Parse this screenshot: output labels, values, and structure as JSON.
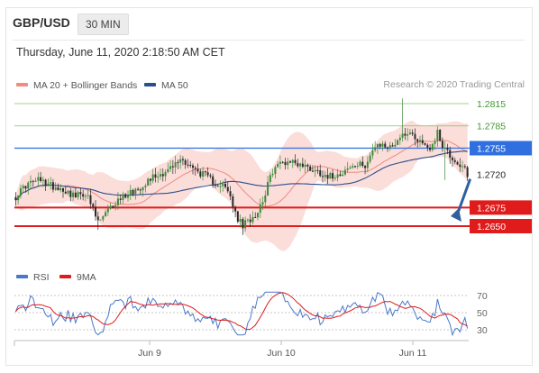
{
  "header": {
    "symbol": "GBP/USD",
    "timeframe": "30 MIN",
    "datetime": "Thursday, June 11, 2020 2:18:50 AM CET"
  },
  "legend_main": [
    {
      "label": "MA 20 + Bollinger Bands",
      "color": "#f28b82"
    },
    {
      "label": "MA 50",
      "color": "#2c4f8c"
    }
  ],
  "legend_rsi": [
    {
      "label": "RSI",
      "color": "#4a78c8"
    },
    {
      "label": "9MA",
      "color": "#e01b1b"
    }
  ],
  "credit": "Research © 2020 Trading Central",
  "colors": {
    "resistance": "#7cc464",
    "pivot": "#3f7be0",
    "support": "#e01b1b",
    "arrow": "#2f5f9e",
    "band": "#fad7d3"
  },
  "chart_data": {
    "type": "line",
    "series_style": "candlestick",
    "ylim": [
      1.2615,
      1.2835
    ],
    "levels": [
      {
        "value": 1.2815,
        "label": "1.2815",
        "kind": "resistance"
      },
      {
        "value": 1.2785,
        "label": "1.2785",
        "kind": "resistance"
      },
      {
        "value": 1.2755,
        "label": "1.2755",
        "kind": "pivot"
      },
      {
        "value": 1.272,
        "label": "1.2720",
        "kind": "current"
      },
      {
        "value": 1.2675,
        "label": "1.2675",
        "kind": "support"
      },
      {
        "value": 1.265,
        "label": "1.2650",
        "kind": "support"
      }
    ],
    "xticks": [
      "Jun 9",
      "Jun 10",
      "Jun 11"
    ],
    "price_path": [
      [
        0,
        1.269
      ],
      [
        4,
        1.2705
      ],
      [
        9,
        1.2712
      ],
      [
        14,
        1.2705
      ],
      [
        19,
        1.27
      ],
      [
        24,
        1.269
      ],
      [
        28,
        1.2695
      ],
      [
        30,
        1.268
      ],
      [
        33,
        1.2655
      ],
      [
        37,
        1.267
      ],
      [
        41,
        1.2685
      ],
      [
        45,
        1.2695
      ],
      [
        49,
        1.27
      ],
      [
        54,
        1.2715
      ],
      [
        59,
        1.2722
      ],
      [
        63,
        1.273
      ],
      [
        66,
        1.274
      ],
      [
        69,
        1.2735
      ],
      [
        72,
        1.2725
      ],
      [
        75,
        1.272
      ],
      [
        79,
        1.271
      ],
      [
        83,
        1.2705
      ],
      [
        86,
        1.269
      ],
      [
        88,
        1.2665
      ],
      [
        91,
        1.265
      ],
      [
        94,
        1.266
      ],
      [
        97,
        1.267
      ],
      [
        100,
        1.2695
      ],
      [
        103,
        1.2725
      ],
      [
        106,
        1.2735
      ],
      [
        110,
        1.2738
      ],
      [
        114,
        1.2733
      ],
      [
        118,
        1.2728
      ],
      [
        122,
        1.2722
      ],
      [
        126,
        1.2717
      ],
      [
        130,
        1.2722
      ],
      [
        135,
        1.273
      ],
      [
        140,
        1.2733
      ],
      [
        143,
        1.2752
      ],
      [
        147,
        1.276
      ],
      [
        150,
        1.2755
      ],
      [
        153,
        1.2767
      ],
      [
        157,
        1.2778
      ],
      [
        160,
        1.277
      ],
      [
        163,
        1.2762
      ],
      [
        166,
        1.2755
      ],
      [
        169,
        1.2775
      ],
      [
        171,
        1.276
      ],
      [
        174,
        1.2745
      ],
      [
        177,
        1.2735
      ],
      [
        180,
        1.2725
      ],
      [
        182,
        1.2716
      ]
    ],
    "rsi": {
      "levels": [
        70,
        50,
        30
      ],
      "ylim": [
        20,
        78
      ]
    }
  }
}
